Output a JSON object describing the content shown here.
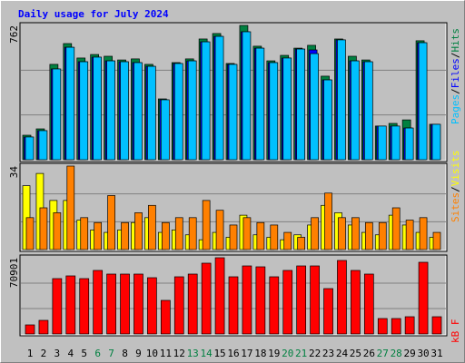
{
  "chart_data": [
    {
      "type": "bar",
      "title": "Daily usage for July 2024",
      "ylim": [
        0,
        762
      ],
      "yticks": [
        762
      ],
      "separator": "/",
      "series": [
        {
          "name": "Pages",
          "color": "#00c0ff",
          "values": [
            129,
            165,
            515,
            638,
            556,
            582,
            561,
            556,
            551,
            530,
            340,
            546,
            561,
            669,
            700,
            541,
            726,
            633,
            551,
            577,
            628,
            602,
            453,
            680,
            561,
            556,
            191,
            191,
            180,
            664,
            201
          ]
        },
        {
          "name": "Files",
          "color": "#0000ff",
          "values": [
            129,
            165,
            515,
            638,
            556,
            582,
            561,
            556,
            551,
            530,
            340,
            546,
            561,
            669,
            700,
            541,
            726,
            633,
            551,
            577,
            628,
            623,
            453,
            680,
            561,
            556,
            191,
            191,
            180,
            664,
            201
          ]
        },
        {
          "name": "Hits",
          "color": "#008040",
          "values": [
            139,
            175,
            541,
            659,
            577,
            597,
            587,
            566,
            572,
            541,
            345,
            551,
            572,
            685,
            716,
            546,
            762,
            644,
            561,
            592,
            633,
            649,
            474,
            685,
            587,
            566,
            191,
            206,
            226,
            675,
            201
          ]
        }
      ]
    },
    {
      "type": "bar",
      "ylim": [
        0,
        34
      ],
      "yticks": [
        34
      ],
      "separator": "/",
      "series": [
        {
          "name": "Sites",
          "color": "#ff8000",
          "values": [
            13,
            17,
            15,
            34,
            13,
            11,
            22,
            11,
            15,
            18,
            11,
            13,
            13,
            20,
            16,
            10,
            13,
            11,
            10,
            7,
            5,
            13,
            23,
            13,
            13,
            11,
            11,
            17,
            12,
            13,
            7
          ]
        },
        {
          "name": "Visits",
          "color": "#ffff00",
          "values": [
            26,
            31,
            20,
            20,
            12,
            8,
            7,
            8,
            11,
            13,
            7,
            8,
            6,
            4,
            7,
            5,
            14,
            6,
            5,
            4,
            6,
            10,
            18,
            15,
            10,
            7,
            6,
            14,
            10,
            7,
            5
          ]
        }
      ]
    },
    {
      "type": "bar",
      "ylim": [
        0,
        70901
      ],
      "yticks": [
        70901
      ],
      "series": [
        {
          "name": "kB F",
          "color": "#ff0000",
          "values": [
            8440,
            12660,
            51490,
            54020,
            51490,
            59090,
            55710,
            55710,
            55710,
            52330,
            31230,
            53180,
            55710,
            65840,
            70901,
            53180,
            63300,
            62460,
            53180,
            59090,
            63300,
            63300,
            42200,
            68370,
            59090,
            55710,
            14350,
            14350,
            16040,
            66680,
            16040
          ]
        }
      ],
      "categories": [
        "1",
        "2",
        "3",
        "4",
        "5",
        "6",
        "7",
        "8",
        "9",
        "10",
        "11",
        "12",
        "13",
        "14",
        "15",
        "16",
        "17",
        "18",
        "19",
        "20",
        "21",
        "22",
        "23",
        "24",
        "25",
        "26",
        "27",
        "28",
        "29",
        "30",
        "31"
      ],
      "weekend_days": [
        "6",
        "7",
        "13",
        "14",
        "20",
        "21",
        "27",
        "28"
      ],
      "weekend_color": "#008040"
    }
  ]
}
